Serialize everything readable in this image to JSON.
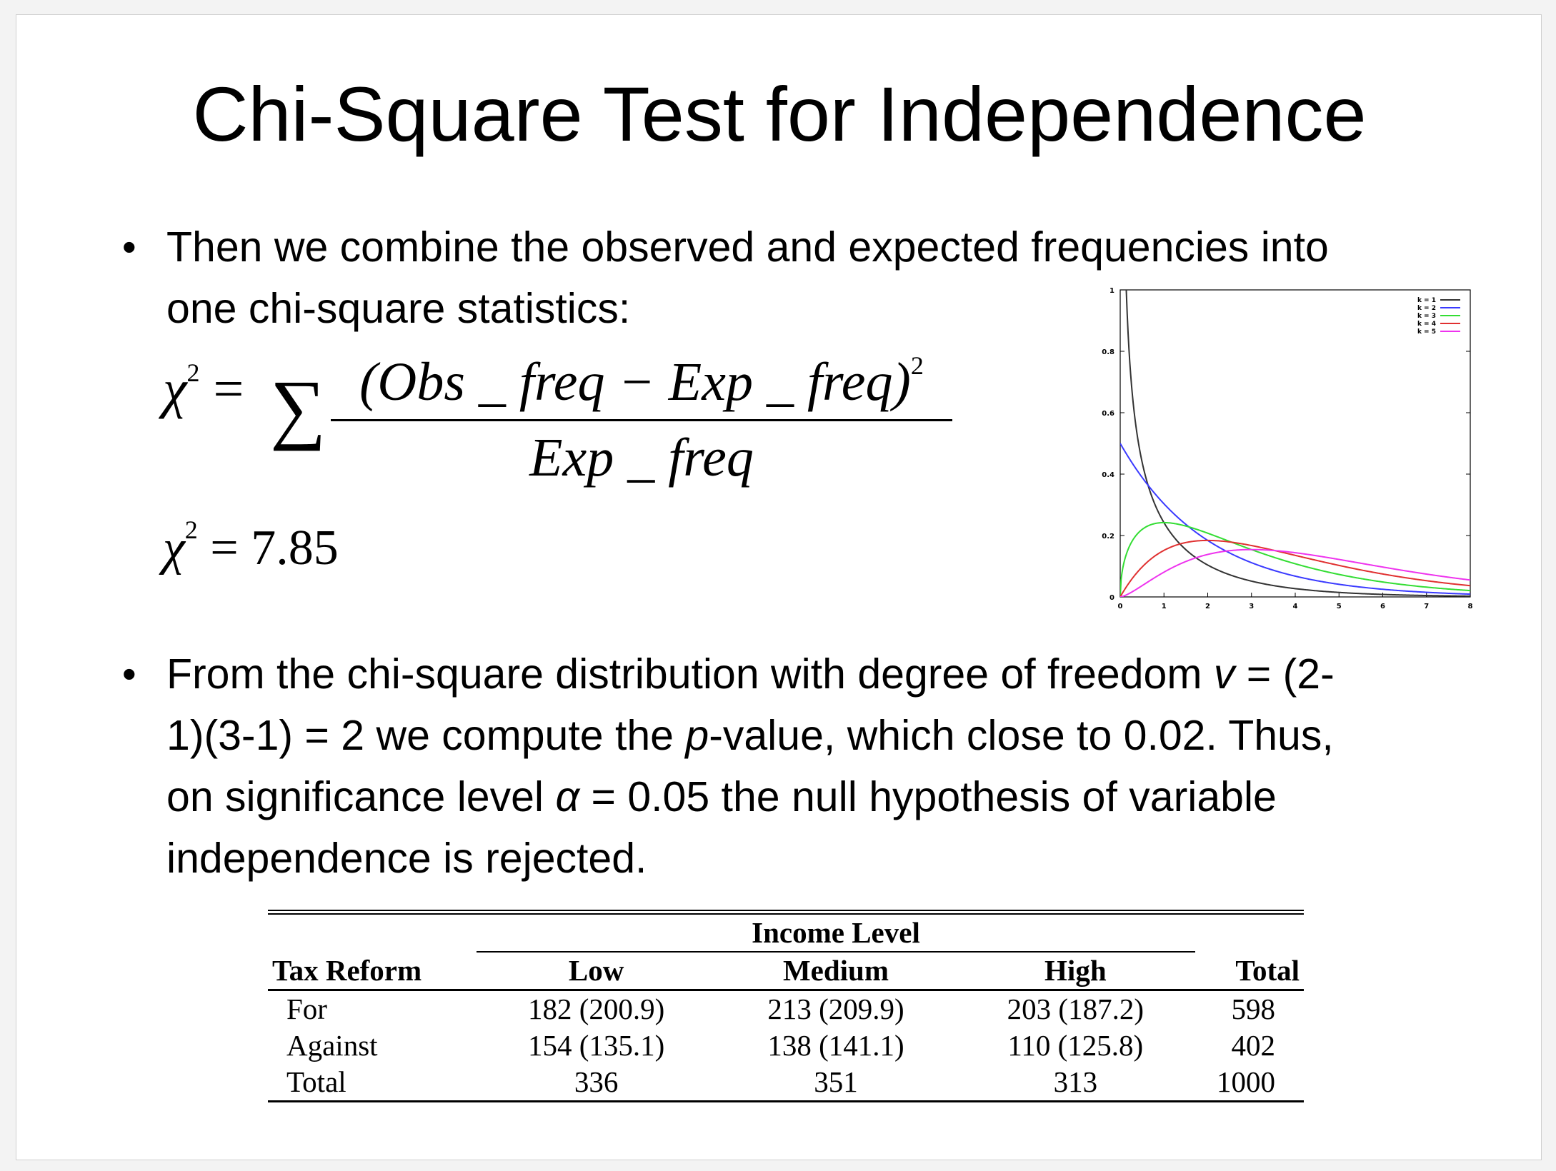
{
  "slide": {
    "title": "Chi-Square Test for Independence",
    "bullet1_line1": "Then we  combine the observed and expected frequencies into",
    "bullet1_line2": "one chi-square statistics:",
    "formula": {
      "lhs": "χ",
      "exponent": "2",
      "equals": "=",
      "numerator": "(Obs _ freq − Exp _ freq)",
      "numerator_exp": "2",
      "denominator": "Exp _ freq",
      "result_value": "= 7.85"
    },
    "bullet2": {
      "l1a": "From the chi-square distribution with degree of freedom ",
      "v": "v",
      "l1b": " = (2-",
      "l2a": "1)(3-1) = 2 we compute the ",
      "p": "p",
      "l2b": "-value, which close to 0.02. Thus,",
      "l3a": "on significance level ",
      "alpha": "α",
      "l3b": " = 0.05 the null hypothesis of variable",
      "l4": "independence is rejected."
    }
  },
  "chart_data": {
    "type": "line",
    "xlim": [
      0,
      8
    ],
    "ylim": [
      0,
      1
    ],
    "x_ticks": [
      "0",
      "1",
      "2",
      "3",
      "4",
      "5",
      "6",
      "7",
      "8"
    ],
    "y_ticks": [
      "0",
      "0.2",
      "0.4",
      "0.6",
      "0.8",
      "1"
    ],
    "legend_position": "top-right",
    "series": [
      {
        "name": "k = 1",
        "color": "#333333",
        "df": 1
      },
      {
        "name": "k = 2",
        "color": "#3a3aff",
        "df": 2
      },
      {
        "name": "k = 3",
        "color": "#33dd33",
        "df": 3
      },
      {
        "name": "k = 4",
        "color": "#e03030",
        "df": 4
      },
      {
        "name": "k = 5",
        "color": "#ee33ee",
        "df": 5
      }
    ]
  },
  "table": {
    "group_header": "Income Level",
    "headers": [
      "Tax Reform",
      "Low",
      "Medium",
      "High",
      "Total"
    ],
    "rows": [
      [
        "For",
        "182 (200.9)",
        "213 (209.9)",
        "203 (187.2)",
        "598"
      ],
      [
        "Against",
        "154 (135.1)",
        "138 (141.1)",
        "110 (125.8)",
        "402"
      ],
      [
        "Total",
        "336",
        "351",
        "313",
        "1000"
      ]
    ]
  }
}
